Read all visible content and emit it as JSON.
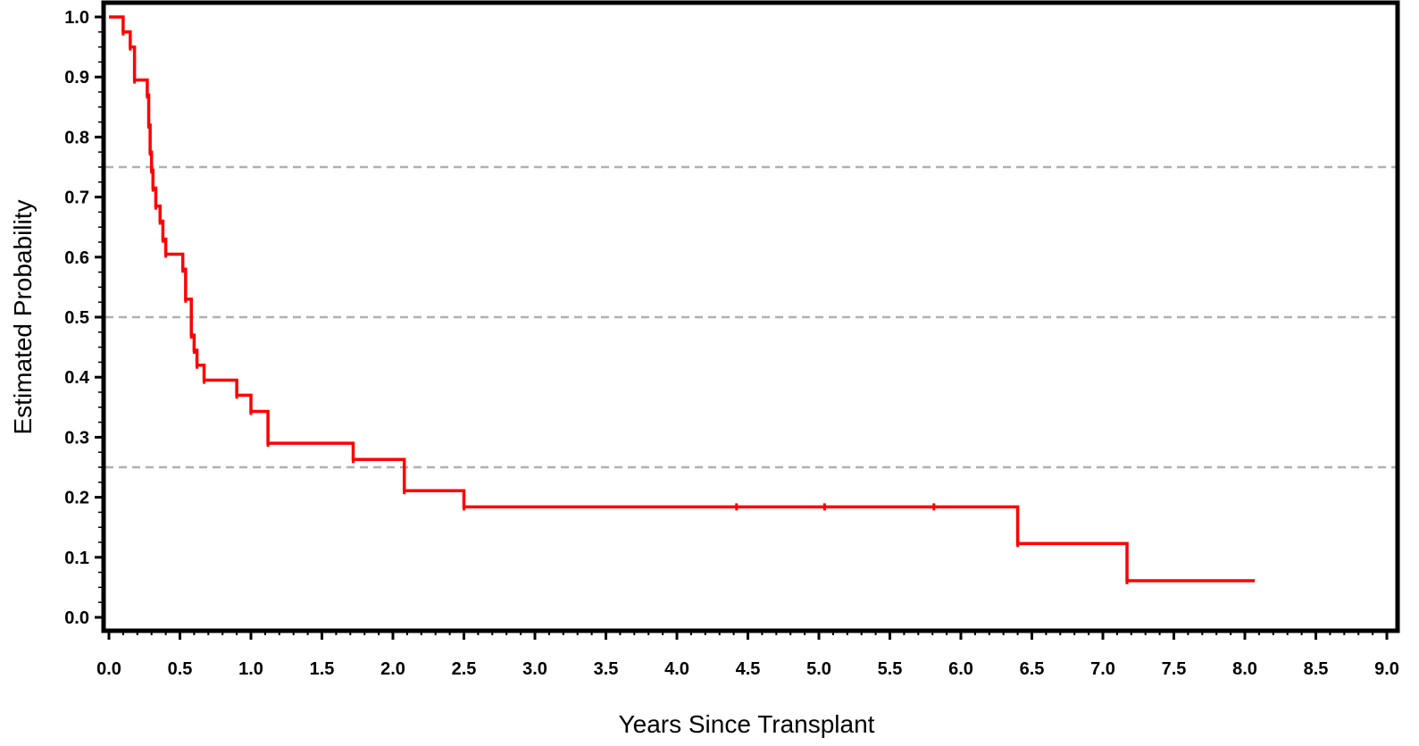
{
  "chart_data": {
    "type": "line",
    "subtype": "step",
    "title": "",
    "xlabel": "Years Since Transplant",
    "ylabel": "Estimated Probability",
    "xlim": [
      0,
      9
    ],
    "ylim": [
      0,
      1
    ],
    "x_ticks": [
      "0.0",
      "0.5",
      "1.0",
      "1.5",
      "2.0",
      "2.5",
      "3.0",
      "3.5",
      "4.0",
      "4.5",
      "5.0",
      "5.5",
      "6.0",
      "6.5",
      "7.0",
      "7.5",
      "8.0",
      "8.5",
      "9.0"
    ],
    "y_ticks": [
      "0.0",
      "0.1",
      "0.2",
      "0.3",
      "0.4",
      "0.5",
      "0.6",
      "0.7",
      "0.8",
      "0.9",
      "1.0"
    ],
    "reference_lines_y": [
      0.25,
      0.5,
      0.75
    ],
    "grid": false,
    "legend": "none",
    "series": [
      {
        "color": "#ff0000",
        "x": [
          0,
          0.1,
          0.15,
          0.18,
          0.27,
          0.28,
          0.29,
          0.3,
          0.31,
          0.33,
          0.36,
          0.38,
          0.4,
          0.43,
          0.52,
          0.54,
          0.58,
          0.6,
          0.62,
          0.67,
          0.9,
          1.0,
          1.12,
          1.72,
          2.08,
          2.5,
          6.4,
          7.17,
          8.07
        ],
        "y": [
          1.0,
          0.975,
          0.95,
          0.895,
          0.87,
          0.82,
          0.775,
          0.745,
          0.715,
          0.685,
          0.66,
          0.63,
          0.605,
          0.605,
          0.58,
          0.53,
          0.47,
          0.445,
          0.42,
          0.395,
          0.37,
          0.343,
          0.29,
          0.263,
          0.211,
          0.184,
          0.123,
          0.061,
          0.061
        ]
      }
    ],
    "censor_marks_x": [
      4.42,
      5.04,
      5.81
    ]
  }
}
